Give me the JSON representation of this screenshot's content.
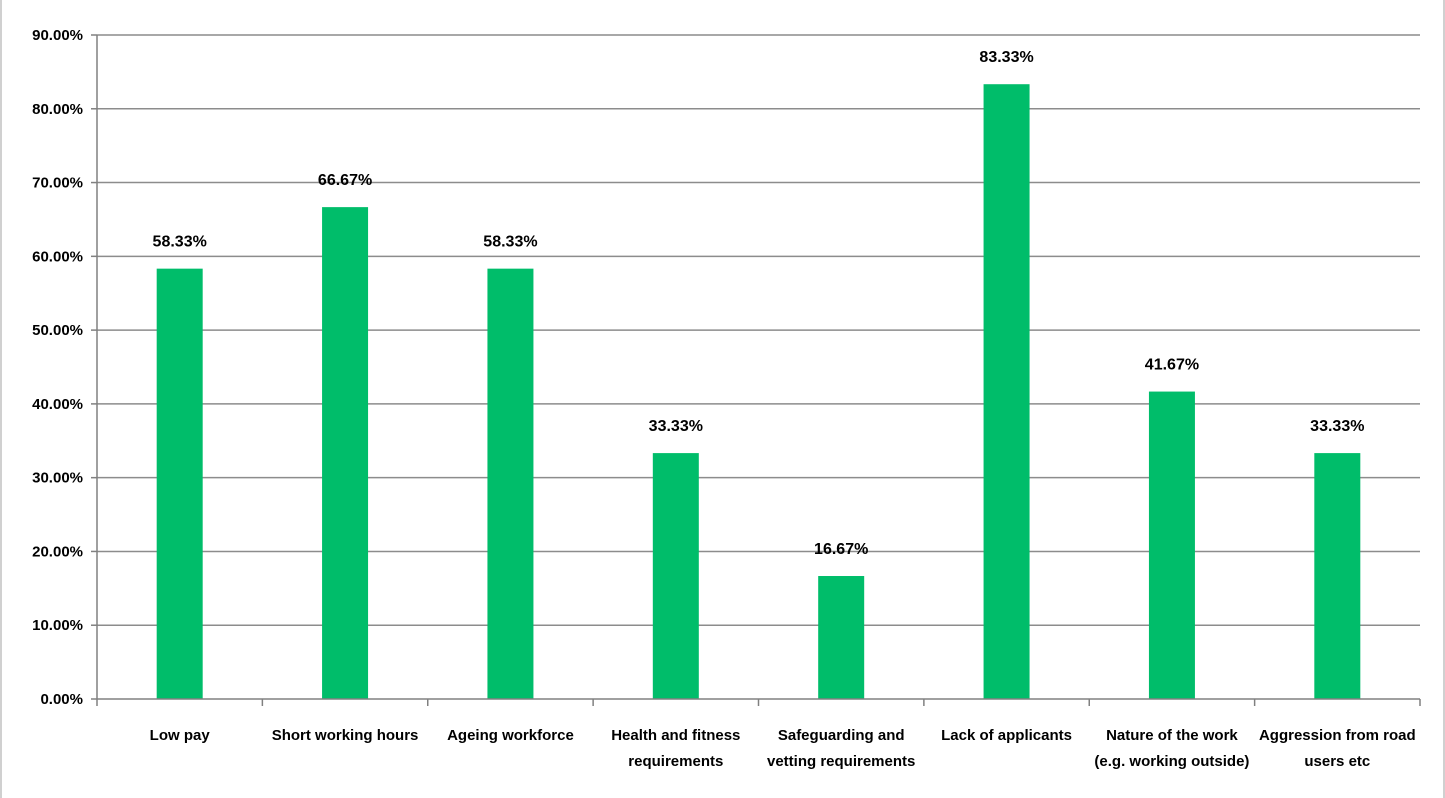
{
  "chart_data": {
    "type": "bar",
    "title": "",
    "xlabel": "",
    "ylabel": "",
    "ylim": [
      0,
      90
    ],
    "y_ticks": [
      "0.00%",
      "10.00%",
      "20.00%",
      "30.00%",
      "40.00%",
      "50.00%",
      "60.00%",
      "70.00%",
      "80.00%",
      "90.00%"
    ],
    "y_tick_values": [
      0,
      10,
      20,
      30,
      40,
      50,
      60,
      70,
      80,
      90
    ],
    "grid": "horizontal",
    "legend": "none",
    "bar_color": "#00bd6a",
    "categories": [
      [
        "Low pay"
      ],
      [
        "Short working hours"
      ],
      [
        "Ageing workforce"
      ],
      [
        "Health and fitness",
        "requirements"
      ],
      [
        "Safeguarding and",
        "vetting requirements"
      ],
      [
        "Lack of applicants"
      ],
      [
        "Nature of the work",
        "(e.g. working outside)"
      ],
      [
        "Aggression from road",
        "users etc"
      ]
    ],
    "values": [
      58.33,
      66.67,
      58.33,
      33.33,
      16.67,
      83.33,
      41.67,
      33.33
    ],
    "data_labels": [
      "58.33%",
      "66.67%",
      "58.33%",
      "33.33%",
      "16.67%",
      "83.33%",
      "41.67%",
      "33.33%"
    ]
  }
}
